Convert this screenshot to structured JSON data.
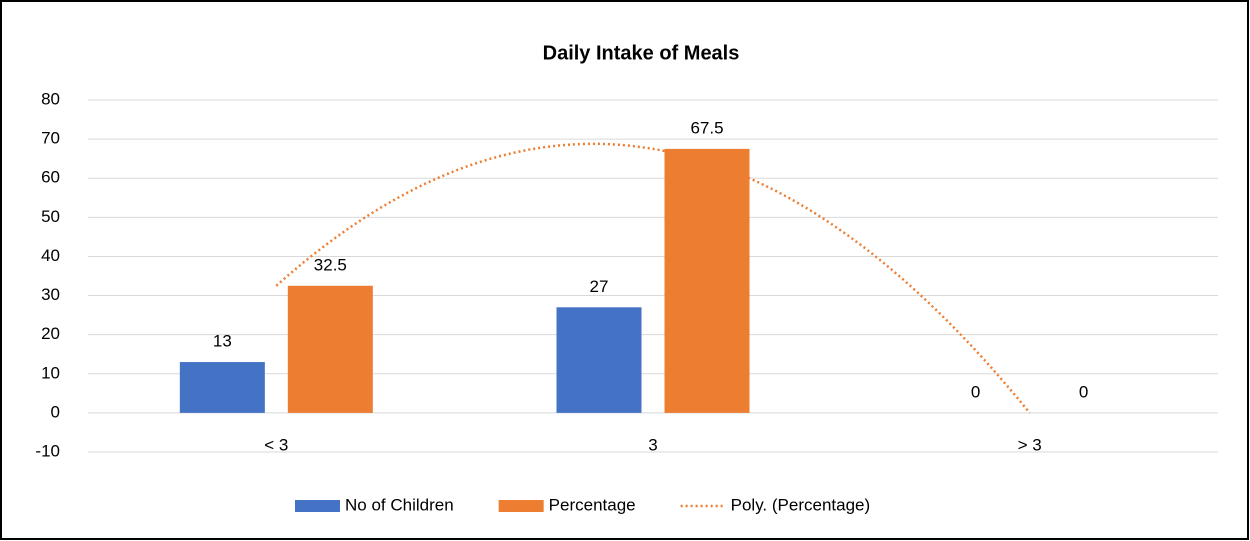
{
  "chart_data": {
    "type": "bar",
    "title": "Daily Intake of Meals",
    "categories": [
      "< 3",
      "3",
      "> 3"
    ],
    "series": [
      {
        "name": "No of Children",
        "color": "#4472c4",
        "values": [
          13,
          27,
          0
        ]
      },
      {
        "name": "Percentage",
        "color": "#ed7d31",
        "values": [
          32.5,
          67.5,
          0
        ],
        "trendline": {
          "name": "Poly. (Percentage)",
          "order": 2
        }
      }
    ],
    "ylim": [
      -10,
      80
    ],
    "yticks": [
      -10,
      0,
      10,
      20,
      30,
      40,
      50,
      60,
      70,
      80
    ],
    "grid": true,
    "legend": "bottom",
    "data_labels": true
  }
}
